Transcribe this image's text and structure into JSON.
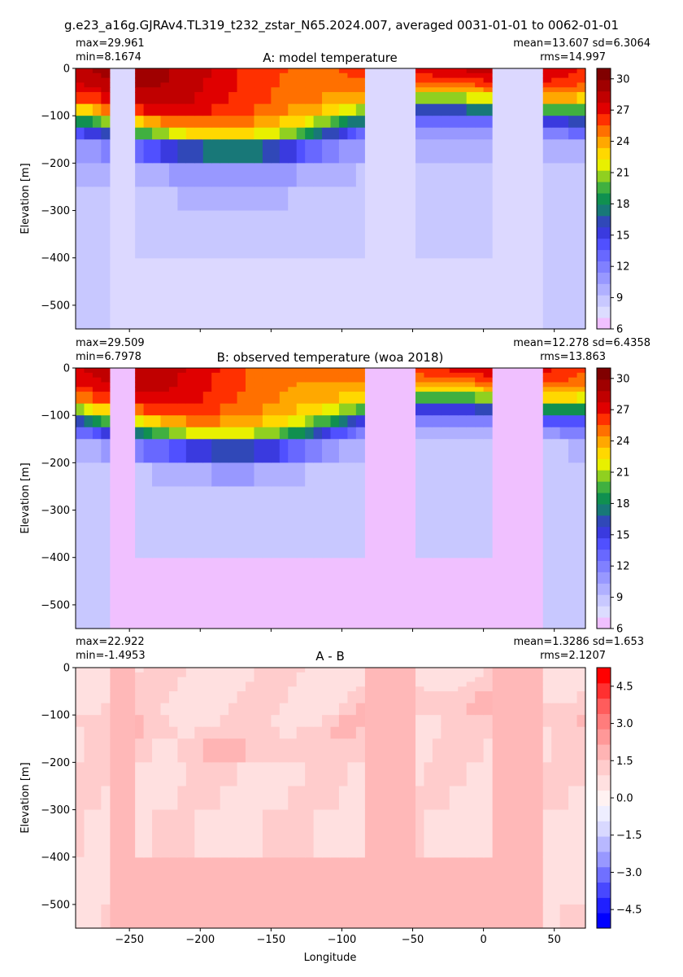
{
  "figure_title": "g.e23_a16g.GJRAv4.TL319_t232_zstar_N65.2024.007, averaged 0031-01-01 to 0062-01-01",
  "chart_data": [
    {
      "type": "heatmap",
      "title": "A: model temperature",
      "stats_left": [
        "max=29.961",
        "min=8.1674"
      ],
      "stats_right": [
        "mean=13.607  sd=6.3064",
        "rms=14.997"
      ],
      "xlabel": "",
      "ylabel": "Elevation [m]",
      "xlim": [
        -288,
        72
      ],
      "ylim": [
        -550,
        0
      ],
      "x_ticks": [
        -250,
        -200,
        -150,
        -100,
        -50,
        0,
        50
      ],
      "x_tick_labels": [],
      "y_ticks": [
        0,
        -100,
        -200,
        -300,
        -400,
        -500
      ],
      "y_tick_labels": [
        "0",
        "−100",
        "−200",
        "−300",
        "−400",
        "−500"
      ],
      "colorbar_ticks": [
        30,
        27,
        24,
        21,
        18,
        15,
        12,
        9,
        6
      ],
      "colorbar_range": [
        6,
        31
      ],
      "land_color": "#dcd8ff",
      "colormap": [
        "#f0c0ff",
        "#dcdcff",
        "#c8c8ff",
        "#b0b0ff",
        "#9898ff",
        "#8080ff",
        "#6868ff",
        "#5050ff",
        "#3a3adf",
        "#3048b8",
        "#187878",
        "#109050",
        "#40b040",
        "#90d020",
        "#e8f000",
        "#ffd800",
        "#ffa800",
        "#ff7000",
        "#ff3000",
        "#e00000",
        "#c00000",
        "#a00000",
        "#800000"
      ]
    },
    {
      "type": "heatmap",
      "title": "B: observed temperature (woa 2018)",
      "stats_left": [
        "max=29.509",
        "min=6.7978"
      ],
      "stats_right": [
        "mean=12.278  sd=6.4358",
        "rms=13.863"
      ],
      "xlabel": "",
      "ylabel": "Elevation [m]",
      "xlim": [
        -288,
        72
      ],
      "ylim": [
        -550,
        0
      ],
      "x_ticks": [
        -250,
        -200,
        -150,
        -100,
        -50,
        0,
        50
      ],
      "x_tick_labels": [],
      "y_ticks": [
        0,
        -100,
        -200,
        -300,
        -400,
        -500
      ],
      "y_tick_labels": [
        "0",
        "−100",
        "−200",
        "−300",
        "−400",
        "−500"
      ],
      "colorbar_ticks": [
        30,
        27,
        24,
        21,
        18,
        15,
        12,
        9,
        6
      ],
      "colorbar_range": [
        6,
        31
      ],
      "land_color": "#f0c0ff",
      "colormap": [
        "#f0c0ff",
        "#dcdcff",
        "#c8c8ff",
        "#b0b0ff",
        "#9898ff",
        "#8080ff",
        "#6868ff",
        "#5050ff",
        "#3a3adf",
        "#3048b8",
        "#187878",
        "#109050",
        "#40b040",
        "#90d020",
        "#e8f000",
        "#ffd800",
        "#ffa800",
        "#ff7000",
        "#ff3000",
        "#e00000",
        "#c00000",
        "#a00000",
        "#800000"
      ]
    },
    {
      "type": "heatmap",
      "title": "A - B",
      "stats_left": [
        "max=22.922",
        "min=-1.4953"
      ],
      "stats_right": [
        "mean=1.3286  sd=1.653",
        "rms=2.1207"
      ],
      "xlabel": "Longitude",
      "ylabel": "Elevation [m]",
      "xlim": [
        -288,
        72
      ],
      "ylim": [
        -550,
        0
      ],
      "x_ticks": [
        -250,
        -200,
        -150,
        -100,
        -50,
        0,
        50
      ],
      "x_tick_labels": [
        "−250",
        "−200",
        "−150",
        "−100",
        "−50",
        "0",
        "50"
      ],
      "y_ticks": [
        0,
        -100,
        -200,
        -300,
        -400,
        -500
      ],
      "y_tick_labels": [
        "0",
        "−100",
        "−200",
        "−300",
        "−400",
        "−500"
      ],
      "colorbar_ticks": [
        4.5,
        3.0,
        1.5,
        0.0,
        -1.5,
        -3.0,
        -4.5
      ],
      "colorbar_tick_labels": [
        "4.5",
        "3.0",
        "1.5",
        "0.0",
        "−1.5",
        "−3.0",
        "−4.5"
      ],
      "colorbar_range": [
        -5.25,
        5.25
      ],
      "land_color": "#ffb8b8",
      "colormap": [
        "#0000ff",
        "#2020ff",
        "#4848ff",
        "#7070ff",
        "#9898ff",
        "#b8b8ff",
        "#d8d8ff",
        "#eeeeff",
        "#fff2f2",
        "#ffe0e0",
        "#ffcccc",
        "#ffb4b4",
        "#ff9898",
        "#ff7c7c",
        "#ff5c5c",
        "#ff3030",
        "#ff0000"
      ]
    }
  ]
}
